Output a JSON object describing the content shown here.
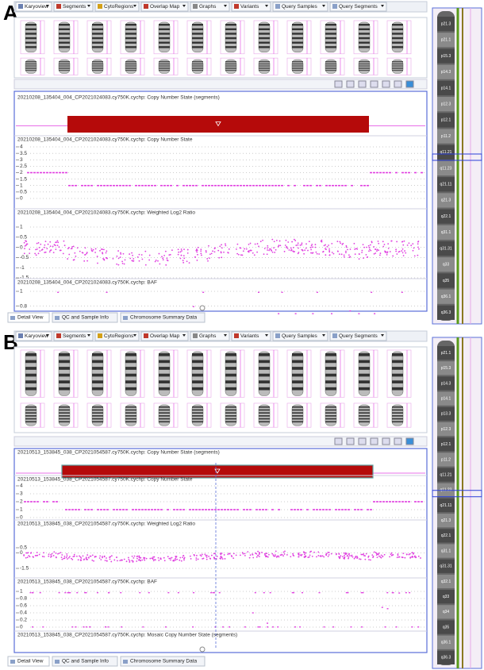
{
  "panels": [
    {
      "label": "A",
      "tabs": [
        "Karyoview",
        "Segments",
        "CytoRegions",
        "Overlap Map",
        "Graphs",
        "Variants",
        "Query Samples",
        "Query Segments"
      ],
      "tracks": [
        {
          "title": "20210208_135404_004_CP2021024083.cy750K.cychp: Copy Number State (segments)"
        },
        {
          "title": "20210208_135404_004_CP2021024083.cy750K.cychp: Copy Number State",
          "ylim": [
            0,
            4
          ],
          "yticks": [
            4,
            3.5,
            3,
            2.5,
            2,
            1.5,
            1,
            0.5,
            0
          ]
        },
        {
          "title": "20210208_135404_004_CP2021024083.cy750K.cychp: Weighted Log2 Ratio",
          "ylim": [
            -1.5,
            1
          ],
          "yticks": [
            1,
            0.5,
            0,
            -0.5,
            -1,
            -1.5
          ]
        },
        {
          "title": "20210208_135404_004_CP2021024083.cy750K.cychp: BAF",
          "ylim": [
            0.7,
            1
          ],
          "yticks": [
            1,
            0.8
          ]
        }
      ],
      "bottom_tabs": [
        "Detail View",
        "QC and Sample Info",
        "Chromosome Summary Data"
      ],
      "ideogram_bands": [
        "p21.3",
        "p21.1",
        "p15.3",
        "p14.3",
        "p14.1",
        "p12.3",
        "p12.1",
        "p11.2",
        "q11.21",
        "q11.23",
        "q21.11",
        "q21.3",
        "q22.1",
        "q31.1",
        "q31.31",
        "q33",
        "q35",
        "q36.1",
        "q36.3"
      ]
    },
    {
      "label": "B",
      "tabs": [
        "Karyoview",
        "Segments",
        "CytoRegions",
        "Overlap Map",
        "Graphs",
        "Variants",
        "Query Samples",
        "Query Segments"
      ],
      "tracks": [
        {
          "title": "20210513_153845_038_CP2021054587.cy750K.cychp: Copy Number State (segments)"
        },
        {
          "title": "20210513_153845_038_CP2021054587.cy750K.cychp: Copy Number State",
          "ylim": [
            0,
            4
          ],
          "yticks": [
            4,
            3,
            2,
            1,
            0
          ]
        },
        {
          "title": "20210513_153845_038_CP2021054587.cy750K.cychp: Weighted Log2 Ratio",
          "ylim": [
            -1.5,
            0.5
          ],
          "yticks": [
            0.5,
            0,
            -1.5
          ]
        },
        {
          "title": "20210513_153845_038_CP2021054587.cy750K.cychp: BAF",
          "ylim": [
            0,
            1
          ],
          "yticks": [
            1,
            0.8,
            0.6,
            0.4,
            0.2,
            0
          ]
        },
        {
          "title": "20210513_153845_038_CP2021054587.cy750K.cychp: Mosaic Copy Number State (segments)"
        }
      ],
      "bottom_tabs": [
        "Detail View",
        "QC and Sample Info",
        "Chromosome Summary Data"
      ],
      "ideogram_bands": [
        "p21.1",
        "p15.3",
        "p14.3",
        "p14.1",
        "p13.3",
        "p12.3",
        "p12.1",
        "p11.2",
        "q11.21",
        "q11.23",
        "q21.11",
        "q21.3",
        "q22.1",
        "q31.1",
        "q31.31",
        "q32.1",
        "q33",
        "q34",
        "q35",
        "q36.1",
        "q36.3"
      ]
    }
  ]
}
